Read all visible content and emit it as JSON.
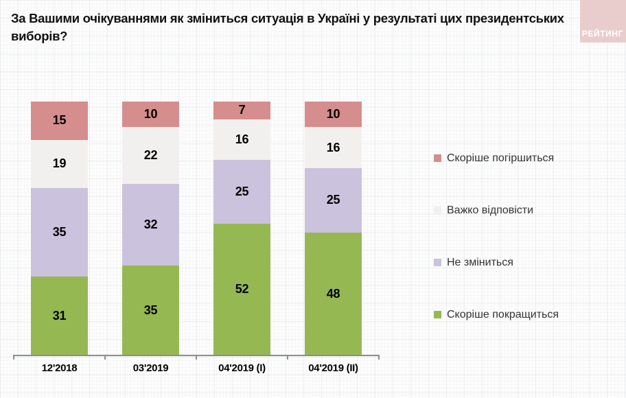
{
  "title": "За Вашими очікуваннями як зміниться ситуація в Україні у результаті цих президентських виборів?",
  "logo": {
    "text": "РЕЙТИНГ",
    "background": "#e9cdcd",
    "text_color": "#ffffff"
  },
  "chart_data": {
    "type": "bar",
    "stacked": true,
    "unit": "percent",
    "categories": [
      "12'2018",
      "03'2019",
      "04'2019 (I)",
      "04'2019 (II)"
    ],
    "series": [
      {
        "name": "Скоріше покращиться",
        "color": "#95b852",
        "values": [
          31,
          35,
          52,
          48
        ]
      },
      {
        "name": "Не зміниться",
        "color": "#cbc2dd",
        "values": [
          35,
          32,
          25,
          25
        ]
      },
      {
        "name": "Важко відповісти",
        "color": "#f2f0ef",
        "values": [
          19,
          22,
          16,
          16
        ]
      },
      {
        "name": "Скоріше погіршиться",
        "color": "#d58d8d",
        "values": [
          15,
          10,
          7,
          10
        ]
      }
    ],
    "legend_position": "right",
    "legend_order_top_to_bottom": [
      "Скоріше погіршиться",
      "Важко відповісти",
      "Не зміниться",
      "Скоріше покращиться"
    ],
    "axis": {
      "baseline_color": "#8c8c8c"
    },
    "value_labels": "inside-segments"
  }
}
